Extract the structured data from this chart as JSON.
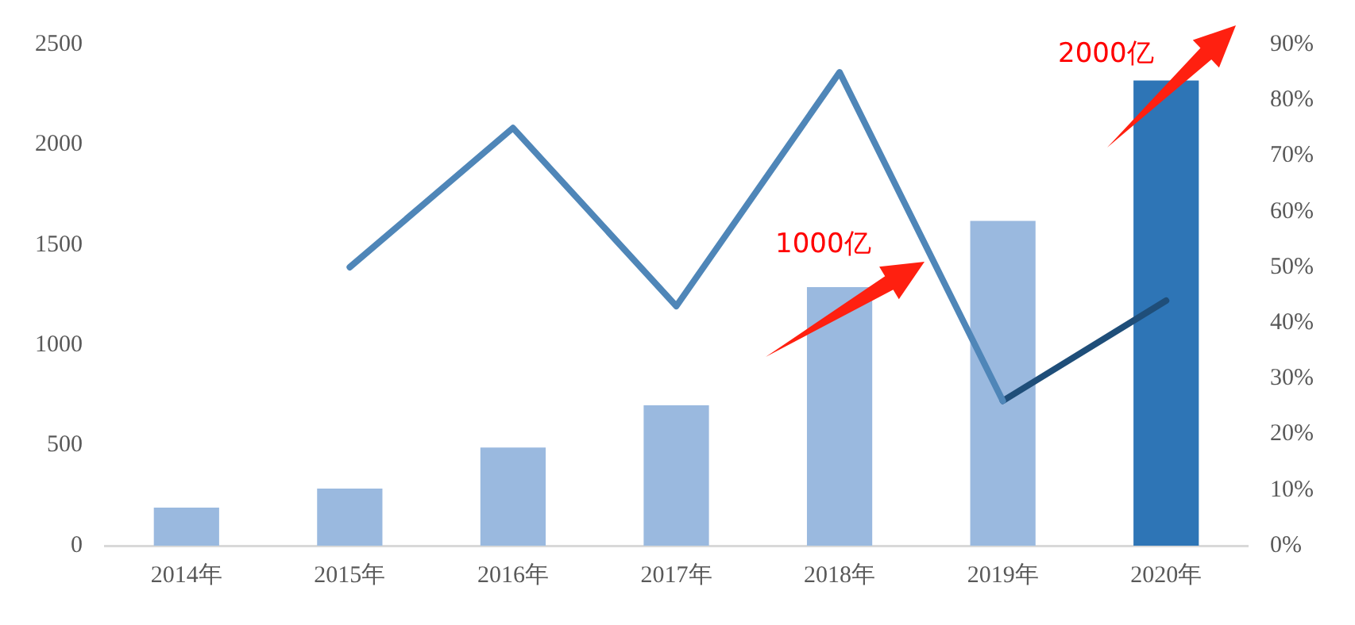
{
  "chart_data": {
    "type": "bar",
    "categories": [
      "2014年",
      "2015年",
      "2016年",
      "2017年",
      "2018年",
      "2019年",
      "2020年"
    ],
    "series": [
      {
        "colors": [
          "#9ab9df",
          "#9ab9df",
          "#9ab9df",
          "#9ab9df",
          "#9ab9df",
          "#9ab9df",
          "#2e75b6"
        ],
        "values": [
          190,
          285,
          490,
          700,
          1290,
          1620,
          2320
        ]
      },
      {
        "type": "line",
        "axis": "y2",
        "color": "#4f86b8",
        "values": [
          null,
          50,
          75,
          43,
          85,
          26,
          null
        ]
      },
      {
        "type": "line",
        "axis": "y2",
        "color": "#1f4e79",
        "values": [
          null,
          null,
          null,
          null,
          null,
          26,
          44
        ]
      }
    ],
    "ylim": [
      0,
      2500
    ],
    "yticks": [
      0,
      500,
      1000,
      1500,
      2000,
      2500
    ],
    "y2lim": [
      0,
      90
    ],
    "y2ticks": [
      {
        "value": 0,
        "label": "0%"
      },
      {
        "value": 10,
        "label": "10%"
      },
      {
        "value": 20,
        "label": "20%"
      },
      {
        "value": 30,
        "label": "30%"
      },
      {
        "value": 40,
        "label": "40%"
      },
      {
        "value": 50,
        "label": "50%"
      },
      {
        "value": 60,
        "label": "60%"
      },
      {
        "value": 70,
        "label": "70%"
      },
      {
        "value": 80,
        "label": "80%"
      },
      {
        "value": 90,
        "label": "90%"
      }
    ],
    "grid": false,
    "legend": false,
    "marker": "none",
    "annotations": [
      "1000亿",
      "2000亿"
    ]
  }
}
